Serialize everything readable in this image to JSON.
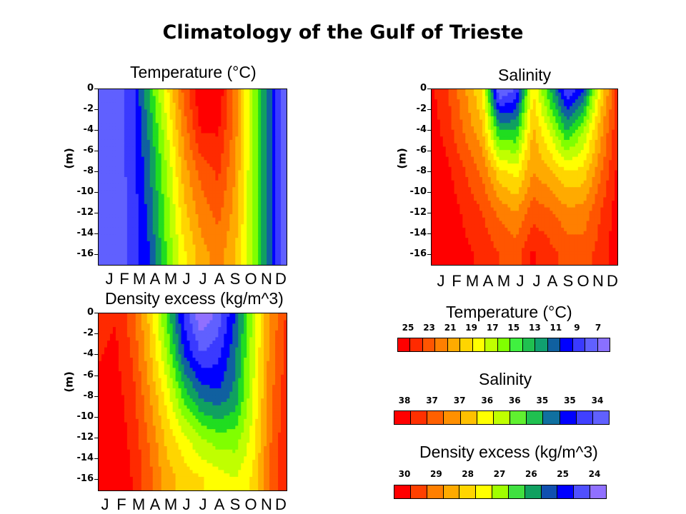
{
  "title": "Climatology of the Gulf of Trieste",
  "colors": [
    "#ff0000",
    "#ff2a00",
    "#ff5500",
    "#ff7f00",
    "#ffaa00",
    "#ffd500",
    "#ffff00",
    "#c0ff00",
    "#80ff00",
    "#20dd20",
    "#10a060",
    "#1060a0",
    "#0000ff",
    "#3a3aff",
    "#6060ff",
    "#9070ff"
  ],
  "chart_data": [
    {
      "type": "heatmap",
      "title": "Temperature (°C)",
      "ylabel": "(m)",
      "x": [
        "J",
        "F",
        "M",
        "A",
        "M",
        "J",
        "J",
        "A",
        "S",
        "O",
        "N",
        "D"
      ],
      "y_ticks": [
        "0",
        "-2",
        "-4",
        "-6",
        "-8",
        "-10",
        "-12",
        "-14",
        "-16"
      ],
      "ylim": [
        -17,
        0
      ],
      "depths": [
        0,
        -4,
        -8,
        -12,
        -16
      ],
      "values": [
        [
          9,
          8.5,
          10,
          14,
          18,
          22,
          25,
          25,
          21,
          16,
          12,
          8
        ],
        [
          9,
          8.5,
          10,
          13,
          17,
          21,
          24,
          24,
          21,
          16,
          12,
          8
        ],
        [
          9,
          8.5,
          9.8,
          12.5,
          16,
          20,
          22,
          23,
          20.5,
          16,
          12,
          8
        ],
        [
          9,
          8.5,
          9.7,
          12,
          15.5,
          19,
          21,
          22,
          20,
          16,
          12,
          8
        ],
        [
          9,
          8.5,
          9.6,
          11.5,
          15,
          18,
          20,
          21,
          19.5,
          16,
          12,
          8
        ]
      ]
    },
    {
      "type": "heatmap",
      "title": "Salinity",
      "ylabel": "(m)",
      "x": [
        "J",
        "F",
        "M",
        "A",
        "M",
        "J",
        "J",
        "A",
        "S",
        "O",
        "N",
        "D"
      ],
      "y_ticks": [
        "0",
        "-2",
        "-4",
        "-6",
        "-8",
        "-10",
        "-12",
        "-14",
        "-16"
      ],
      "ylim": [
        -17,
        0
      ],
      "depths": [
        0,
        -4,
        -8,
        -12,
        -16
      ],
      "values": [
        [
          37.8,
          37.5,
          37,
          36.5,
          34.2,
          34.5,
          36.5,
          35.5,
          34.5,
          35,
          36.5,
          37.6
        ],
        [
          37.9,
          37.6,
          37.2,
          36.8,
          35.5,
          35.5,
          36.8,
          36.2,
          35.5,
          36,
          36.9,
          37.7
        ],
        [
          38,
          37.8,
          37.5,
          37.2,
          36.6,
          36.4,
          37,
          36.8,
          36.5,
          36.6,
          37.2,
          37.8
        ],
        [
          38,
          37.9,
          37.7,
          37.5,
          37.2,
          37,
          37.4,
          37.3,
          37.1,
          37.1,
          37.5,
          37.9
        ],
        [
          38,
          37.9,
          37.8,
          37.7,
          37.5,
          37.4,
          37.8,
          37.6,
          37.4,
          37.4,
          37.6,
          37.9
        ]
      ]
    },
    {
      "type": "heatmap",
      "title": "Density excess (kg/m^3)",
      "ylabel": "(m)",
      "x": [
        "J",
        "F",
        "M",
        "A",
        "M",
        "J",
        "J",
        "A",
        "S",
        "O",
        "N",
        "D"
      ],
      "y_ticks": [
        "0",
        "-2",
        "-4",
        "-6",
        "-8",
        "-10",
        "-12",
        "-14",
        "-16"
      ],
      "ylim": [
        -17,
        0
      ],
      "depths": [
        0,
        -4,
        -8,
        -12,
        -16
      ],
      "values": [
        [
          29.5,
          29.6,
          29,
          28,
          26.5,
          25,
          24,
          24.5,
          25.5,
          27,
          28.5,
          29.3
        ],
        [
          29.6,
          29.7,
          29.2,
          28.2,
          27,
          25.5,
          24.8,
          25,
          25.8,
          27.2,
          28.6,
          29.4
        ],
        [
          29.7,
          29.8,
          29.4,
          28.5,
          27.6,
          26.5,
          25.8,
          25.6,
          26,
          27.3,
          28.7,
          29.5
        ],
        [
          29.8,
          29.9,
          29.5,
          28.8,
          28,
          27.5,
          27,
          26.8,
          26.8,
          27.5,
          28.8,
          29.6
        ],
        [
          29.8,
          30,
          29.6,
          29,
          28.3,
          28,
          27.8,
          27.6,
          27.4,
          27.8,
          28.9,
          29.6
        ]
      ]
    }
  ],
  "colorbars": [
    {
      "title": "Temperature (°C)",
      "labels": [
        "25",
        "23",
        "21",
        "19",
        "17",
        "15",
        "13",
        "11",
        "9",
        "7"
      ],
      "min": 7,
      "max": 25
    },
    {
      "title": "Salinity",
      "labels": [
        "38",
        "37",
        "37",
        "36",
        "36",
        "35",
        "35",
        "34"
      ],
      "min": 34,
      "max": 38
    },
    {
      "title": "Density excess (kg/m^3)",
      "labels": [
        "30",
        "29",
        "28",
        "27",
        "26",
        "25",
        "24"
      ],
      "min": 24,
      "max": 30
    }
  ]
}
